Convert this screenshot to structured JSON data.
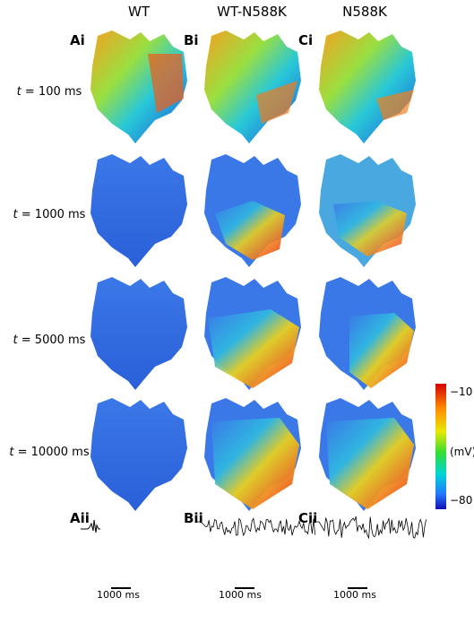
{
  "columns": [
    "WT",
    "WT-N588K",
    "N588K"
  ],
  "panel_labels": {
    "ai": "Ai",
    "bi": "Bi",
    "ci": "Ci",
    "aii": "Aii",
    "bii": "Bii",
    "cii": "Cii"
  },
  "time_prefix": "t",
  "rows": [
    {
      "time": "= 100 ms"
    },
    {
      "time": "= 1000 ms"
    },
    {
      "time": "= 5000 ms"
    },
    {
      "time": "= 10000 ms"
    }
  ],
  "colorbar": {
    "max_label": "−10",
    "unit_label": "(mV)",
    "min_label": "−80",
    "colors": [
      "#d40000",
      "#ff8c00",
      "#e8e800",
      "#33dd33",
      "#00d5d5",
      "#2277ff",
      "#1010b0"
    ]
  },
  "scale_label": "1000 ms"
}
